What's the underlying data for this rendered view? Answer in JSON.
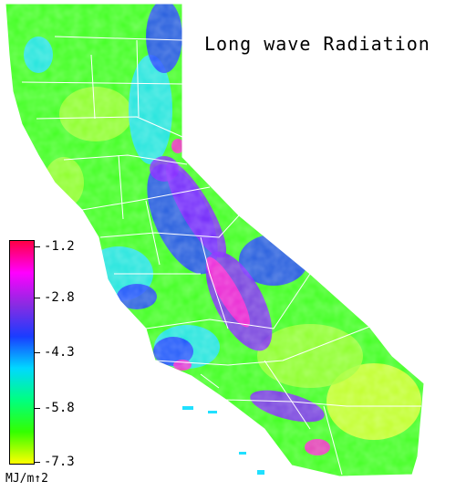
{
  "title": "Long wave Radiation",
  "legend": {
    "colors": [
      "#ff0044",
      "#ff00ff",
      "#8a2be2",
      "#1a3cff",
      "#00d8ff",
      "#00ff80",
      "#33ff00",
      "#ffff00"
    ],
    "ticks": [
      "-1.2",
      "-2.8",
      "-4.3",
      "-5.8",
      "-7.3"
    ],
    "unit": "MJ/m↑2"
  },
  "map": {
    "fill_colors": {
      "green": "#40ff20",
      "light_green": "#9cff30",
      "cyan": "#20e0ff",
      "blue": "#2040ff",
      "purple": "#8020ff",
      "magenta": "#ff20d0",
      "yellow_green": "#d8ff30",
      "boundary": "#ffffff"
    }
  }
}
